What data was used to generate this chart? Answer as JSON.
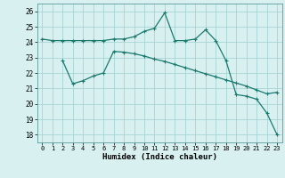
{
  "xlabel": "Humidex (Indice chaleur)",
  "background_color": "#d8f0f0",
  "grid_color": "#a8d4d4",
  "line_color": "#1a7a6e",
  "xlim": [
    -0.5,
    23.5
  ],
  "ylim": [
    17.5,
    26.5
  ],
  "yticks": [
    18,
    19,
    20,
    21,
    22,
    23,
    24,
    25,
    26
  ],
  "xticks": [
    0,
    1,
    2,
    3,
    4,
    5,
    6,
    7,
    8,
    9,
    10,
    11,
    12,
    13,
    14,
    15,
    16,
    17,
    18,
    19,
    20,
    21,
    22,
    23
  ],
  "line1_x": [
    0,
    1,
    2,
    3,
    4,
    5,
    6,
    7,
    8,
    9,
    10,
    11,
    12,
    13,
    14,
    15,
    16,
    17,
    18,
    19,
    20,
    21,
    22,
    23
  ],
  "line1_y": [
    24.2,
    24.1,
    24.1,
    24.1,
    24.1,
    24.1,
    24.1,
    24.2,
    24.2,
    24.35,
    24.7,
    24.9,
    25.9,
    24.1,
    24.1,
    24.2,
    24.8,
    24.1,
    22.8,
    20.6,
    20.5,
    20.3,
    19.4,
    18.0
  ],
  "line2_x": [
    2,
    3,
    4,
    5,
    6,
    7,
    8,
    9,
    10,
    11,
    12,
    13,
    14,
    15,
    16,
    17,
    18,
    19,
    20,
    21,
    22,
    23
  ],
  "line2_y": [
    22.8,
    21.3,
    21.5,
    21.8,
    22.0,
    23.4,
    23.35,
    23.25,
    23.1,
    22.9,
    22.75,
    22.55,
    22.35,
    22.15,
    21.95,
    21.75,
    21.55,
    21.35,
    21.15,
    20.9,
    20.65,
    20.75
  ]
}
